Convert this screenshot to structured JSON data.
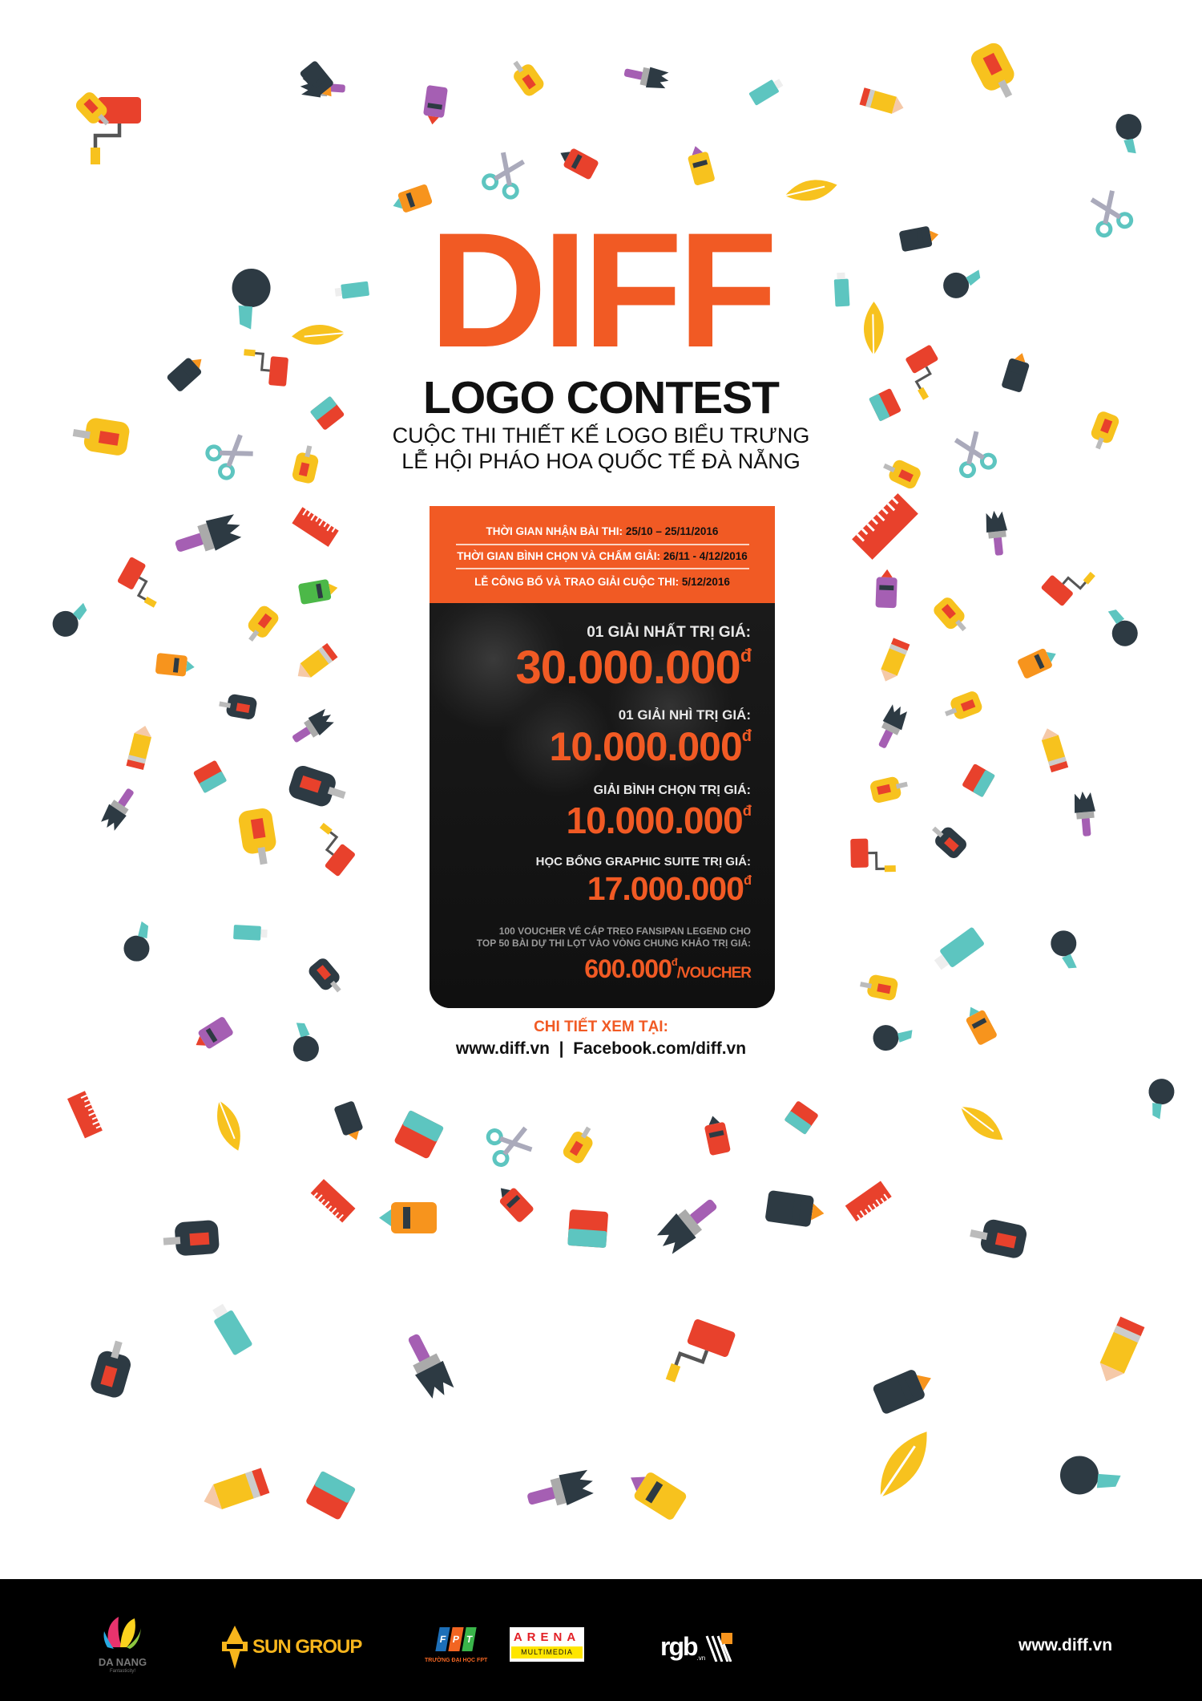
{
  "header": {
    "title": "DIFF",
    "subtitle": "LOGO CONTEST",
    "tagline_1": "CUỘC THI THIẾT KẾ LOGO BIỂU TRƯNG",
    "tagline_2": "LỄ HỘI PHÁO HOA QUỐC TẾ ĐÀ NẴNG"
  },
  "schedule": [
    {
      "label": "THỜI GIAN NHẬN BÀI THI:",
      "value": "25/10 – 25/11/2016"
    },
    {
      "label": "THỜI GIAN BÌNH CHỌN VÀ CHẤM GIẢI:",
      "value": "26/11 - 4/12/2016"
    },
    {
      "label": "LỄ CÔNG BỐ VÀ TRAO GIẢI CUỘC THI:",
      "value": "5/12/2016"
    }
  ],
  "prizes": [
    {
      "label": "01 GIẢI NHẤT TRỊ GIÁ:",
      "amount": "30.000.000",
      "currency": "đ"
    },
    {
      "label": "01 GIẢI NHÌ TRỊ GIÁ:",
      "amount": "10.000.000",
      "currency": "đ"
    },
    {
      "label": "GIẢI BÌNH CHỌN TRỊ GIÁ:",
      "amount": "10.000.000",
      "currency": "đ"
    },
    {
      "label": "HỌC BỔNG GRAPHIC SUITE TRỊ GIÁ:",
      "amount": "17.000.000",
      "currency": "đ"
    }
  ],
  "voucher": {
    "line_1": "100 VOUCHER VÉ CÁP TREO FANSIPAN LEGEND CHO",
    "line_2": "TOP 50 BÀI DỰ THI LỌT VÀO VÒNG CHUNG KHẢO TRỊ GIÁ:",
    "amount": "600.000",
    "currency": "đ",
    "unit": "/VOUCHER"
  },
  "details": {
    "heading": "CHI TIẾT XEM TẠI:",
    "website": "www.diff.vn",
    "separator": "|",
    "facebook": "Facebook.com/diff.vn"
  },
  "footer": {
    "sponsors": [
      {
        "name": "DA NANG",
        "tagline": "Fantasticity!"
      },
      {
        "name": "SUN GROUP"
      },
      {
        "name": "FPT",
        "tagline": "TRƯỜNG ĐẠI HỌC FPT"
      },
      {
        "name": "ARENA",
        "tagline": "MULTIMEDIA"
      },
      {
        "name": "rgb",
        "tagline": ".vn"
      }
    ],
    "website": "www.diff.vn"
  },
  "colors": {
    "accent": "#f15a24",
    "dark": "#141414",
    "footer": "#000000"
  }
}
